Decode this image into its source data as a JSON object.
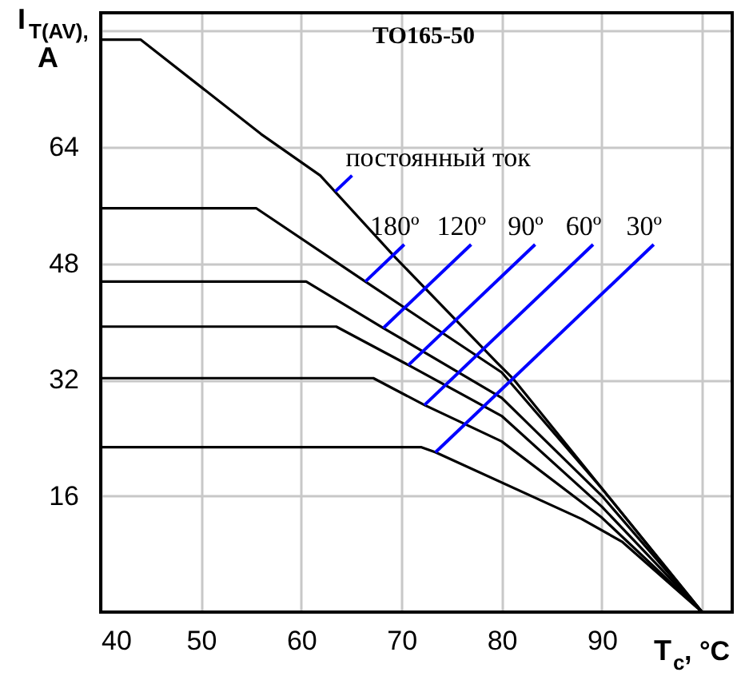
{
  "chart_data": {
    "type": "line",
    "title": "TO165-50",
    "xlabel": "T$_{c}$, °C",
    "ylabel": "I$_{T(AV)}$, A",
    "xlim": [
      40,
      103
    ],
    "ylim": [
      0,
      82.5
    ],
    "xticks": [
      40,
      50,
      60,
      70,
      80,
      90,
      {
        "value": 100,
        "label": null
      }
    ],
    "yticks": [
      16,
      32,
      48,
      64,
      {
        "value": 80,
        "label": null
      }
    ],
    "grid": true,
    "marker": "none",
    "line_style": "solid",
    "series": [
      {
        "color": "#000000",
        "x": [
          40,
          44,
          56,
          61.9,
          69.4,
          79.5,
          81.1,
          100
        ],
        "values": [
          78.8,
          78.8,
          65.8,
          60.1,
          48.8,
          34.4,
          32.2,
          0
        ]
      },
      {
        "color": "#000000",
        "x": [
          40,
          55.5,
          66.4,
          80,
          90,
          100
        ],
        "values": [
          55.6,
          55.6,
          45.5,
          33,
          17,
          0
        ]
      },
      {
        "color": "#000000",
        "x": [
          40,
          60.5,
          68.2,
          80,
          90,
          100
        ],
        "values": [
          45.5,
          45.5,
          39.1,
          29.5,
          16,
          0
        ]
      },
      {
        "color": "#000000",
        "x": [
          40,
          63.5,
          70.7,
          80,
          90,
          100
        ],
        "values": [
          39.3,
          39.3,
          34,
          27,
          14.5,
          0
        ]
      },
      {
        "color": "#000000",
        "x": [
          40,
          67.2,
          72.3,
          80,
          90,
          100
        ],
        "values": [
          32.2,
          32.2,
          28.5,
          23.5,
          13,
          0
        ]
      },
      {
        "color": "#000000",
        "x": [
          40,
          72,
          73.4,
          88,
          92,
          100
        ],
        "values": [
          22.7,
          22.7,
          22,
          12.8,
          9.7,
          0
        ]
      }
    ],
    "annotations": [
      {
        "text": "постоянный ток",
        "x": 63.4,
        "y": 57.9
      },
      {
        "text": "180º",
        "x": 66.4,
        "y": 45.5
      },
      {
        "text": "120º",
        "x": 68.2,
        "y": 39.1
      },
      {
        "text": "90º",
        "x": 70.7,
        "y": 34
      },
      {
        "text": "60º",
        "x": 72.3,
        "y": 28.5
      },
      {
        "text": "30º",
        "x": 73.4,
        "y": 22
      }
    ]
  }
}
